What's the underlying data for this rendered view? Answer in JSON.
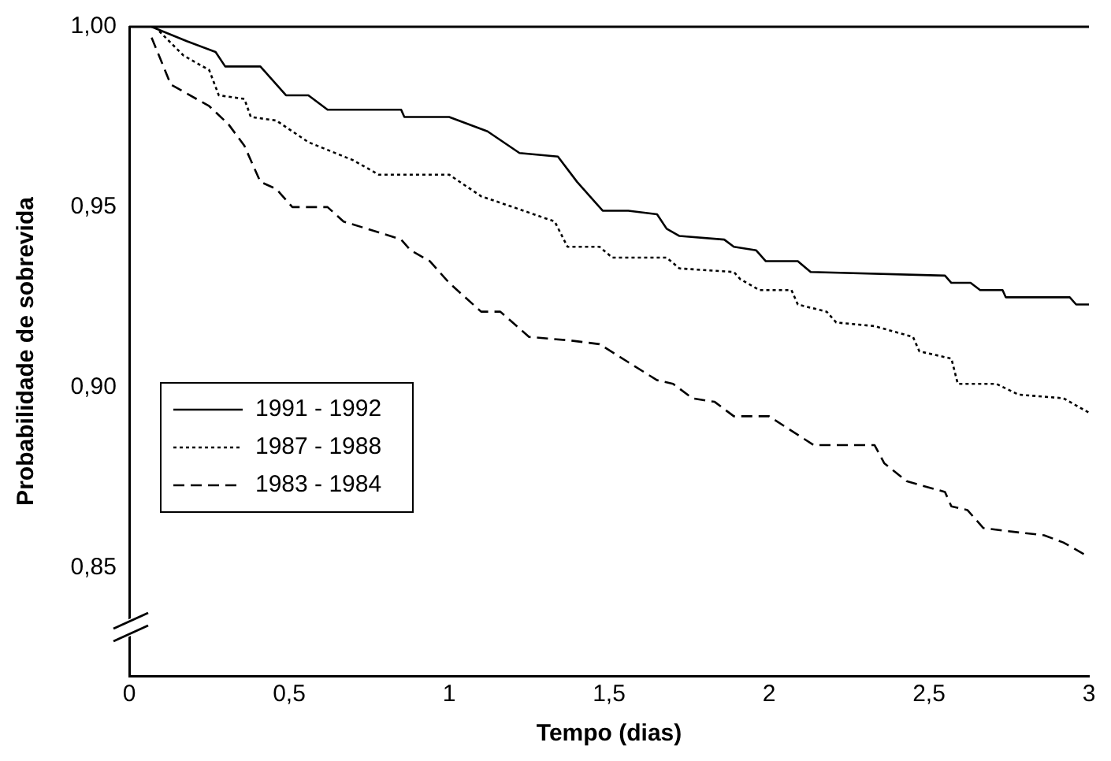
{
  "chart_data": {
    "type": "line",
    "xlabel": "Tempo (dias)",
    "ylabel": "Probabilidade de sobrevida",
    "xlim": [
      0,
      3
    ],
    "ylim": [
      0.82,
      1.0
    ],
    "xticks": [
      0,
      {
        "value": 0.5,
        "label": "0,5"
      },
      1,
      {
        "value": 1.5,
        "label": "1,5"
      },
      2,
      {
        "value": 2.5,
        "label": "2,5"
      },
      3
    ],
    "yticks": [
      {
        "value": 0.85,
        "label": "0,85"
      },
      {
        "value": 0.9,
        "label": "0,90"
      },
      {
        "value": 0.95,
        "label": "0,95"
      },
      {
        "value": 1.0,
        "label": "1,00"
      }
    ],
    "grid": false,
    "legend": "left",
    "marker": "none",
    "series": [
      {
        "name": "1991 - 1992",
        "color": "#000000",
        "line_style": "solid",
        "x": [
          0.07,
          0.18,
          0.27,
          0.3,
          0.41,
          0.49,
          0.56,
          0.62,
          0.85,
          0.86,
          1.0,
          1.12,
          1.22,
          1.34,
          1.4,
          1.48,
          1.56,
          1.65,
          1.68,
          1.72,
          1.86,
          1.89,
          1.96,
          1.99,
          2.09,
          2.13,
          2.55,
          2.57,
          2.63,
          2.66,
          2.73,
          2.74,
          2.94,
          2.96,
          3.0
        ],
        "values": [
          1.0,
          0.996,
          0.993,
          0.989,
          0.989,
          0.981,
          0.981,
          0.977,
          0.977,
          0.975,
          0.975,
          0.971,
          0.965,
          0.964,
          0.957,
          0.949,
          0.949,
          0.948,
          0.944,
          0.942,
          0.941,
          0.939,
          0.938,
          0.935,
          0.935,
          0.932,
          0.931,
          0.929,
          0.929,
          0.927,
          0.927,
          0.925,
          0.925,
          0.923,
          0.923
        ]
      },
      {
        "name": "1987 - 1988",
        "color": "#000000",
        "line_style": "dotted",
        "x": [
          0.08,
          0.17,
          0.25,
          0.28,
          0.36,
          0.38,
          0.46,
          0.56,
          0.7,
          0.78,
          1.0,
          1.1,
          1.2,
          1.33,
          1.37,
          1.47,
          1.51,
          1.68,
          1.72,
          1.89,
          1.91,
          1.97,
          2.07,
          2.09,
          2.18,
          2.21,
          2.33,
          2.45,
          2.47,
          2.57,
          2.59,
          2.71,
          2.78,
          2.92,
          3.0
        ],
        "values": [
          1.0,
          0.992,
          0.988,
          0.981,
          0.98,
          0.975,
          0.974,
          0.968,
          0.963,
          0.959,
          0.959,
          0.953,
          0.95,
          0.946,
          0.939,
          0.939,
          0.936,
          0.936,
          0.933,
          0.932,
          0.93,
          0.927,
          0.927,
          0.923,
          0.921,
          0.918,
          0.917,
          0.914,
          0.91,
          0.908,
          0.901,
          0.901,
          0.898,
          0.897,
          0.893
        ]
      },
      {
        "name": "1983 - 1984",
        "color": "#000000",
        "line_style": "dashed",
        "x": [
          0.07,
          0.13,
          0.25,
          0.31,
          0.36,
          0.41,
          0.46,
          0.51,
          0.62,
          0.67,
          0.78,
          0.85,
          0.88,
          0.94,
          1.0,
          1.1,
          1.16,
          1.25,
          1.38,
          1.47,
          1.56,
          1.65,
          1.7,
          1.76,
          1.83,
          1.89,
          2.0,
          2.14,
          2.33,
          2.36,
          2.43,
          2.55,
          2.57,
          2.62,
          2.67,
          2.76,
          2.86,
          2.92,
          3.0
        ],
        "values": [
          0.997,
          0.984,
          0.978,
          0.973,
          0.967,
          0.957,
          0.955,
          0.95,
          0.95,
          0.946,
          0.943,
          0.941,
          0.938,
          0.935,
          0.929,
          0.921,
          0.921,
          0.914,
          0.913,
          0.912,
          0.907,
          0.902,
          0.901,
          0.897,
          0.896,
          0.892,
          0.892,
          0.884,
          0.884,
          0.879,
          0.874,
          0.871,
          0.867,
          0.866,
          0.861,
          0.86,
          0.859,
          0.857,
          0.853
        ]
      }
    ]
  }
}
